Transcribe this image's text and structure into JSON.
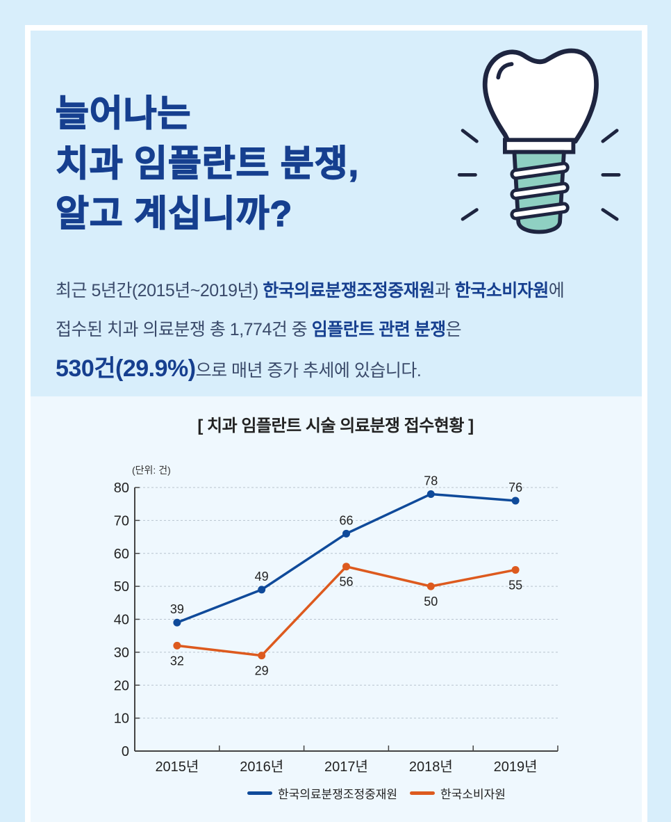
{
  "headline": {
    "lines": [
      "늘어나는",
      "치과 임플란트 분쟁,",
      "알고 계십니까?"
    ]
  },
  "illustration": {
    "name": "dental-implant-icon"
  },
  "description": {
    "line1": {
      "pre": "최근 5년간(2015년~2019년) ",
      "bold1": "한국의료분쟁조정중재원",
      "mid": "과 ",
      "bold2": "한국소비자원",
      "post": "에"
    },
    "line2": {
      "pre": "접수된 치과 의료분쟁 총 1,774건 중 ",
      "bold": "임플란트 관련 분쟁",
      "post": "은"
    },
    "line3": {
      "big": "530건(29.9%)",
      "post": "으로 매년 증가 추세에 있습니다."
    }
  },
  "colors": {
    "background": "#d8eefb",
    "chart_panel": "#eff8fe",
    "headline": "#163f8f",
    "series_kmdmac": "#0f4a9a",
    "series_kca": "#dd5a1e"
  },
  "chart_data": {
    "type": "line",
    "title": "[ 치과 임플란트 시술 의료분쟁 접수현황 ]",
    "unit_label": "(단위: 건)",
    "xlabel": "",
    "ylabel": "",
    "categories": [
      "2015년",
      "2016년",
      "2017년",
      "2018년",
      "2019년"
    ],
    "yticks": [
      0,
      10,
      20,
      30,
      40,
      50,
      60,
      70,
      80
    ],
    "ylim": [
      0,
      80
    ],
    "grid": "horizontal dotted",
    "legend_position": "bottom",
    "series": [
      {
        "name": "한국의료분쟁조정중재원",
        "color": "#0f4a9a",
        "values": [
          39,
          49,
          66,
          78,
          76
        ],
        "label_pos": [
          "above",
          "above",
          "above",
          "above",
          "above"
        ]
      },
      {
        "name": "한국소비자원",
        "color": "#dd5a1e",
        "values": [
          32,
          29,
          56,
          50,
          55
        ],
        "label_pos": [
          "below",
          "below",
          "below",
          "below",
          "below"
        ]
      }
    ]
  }
}
